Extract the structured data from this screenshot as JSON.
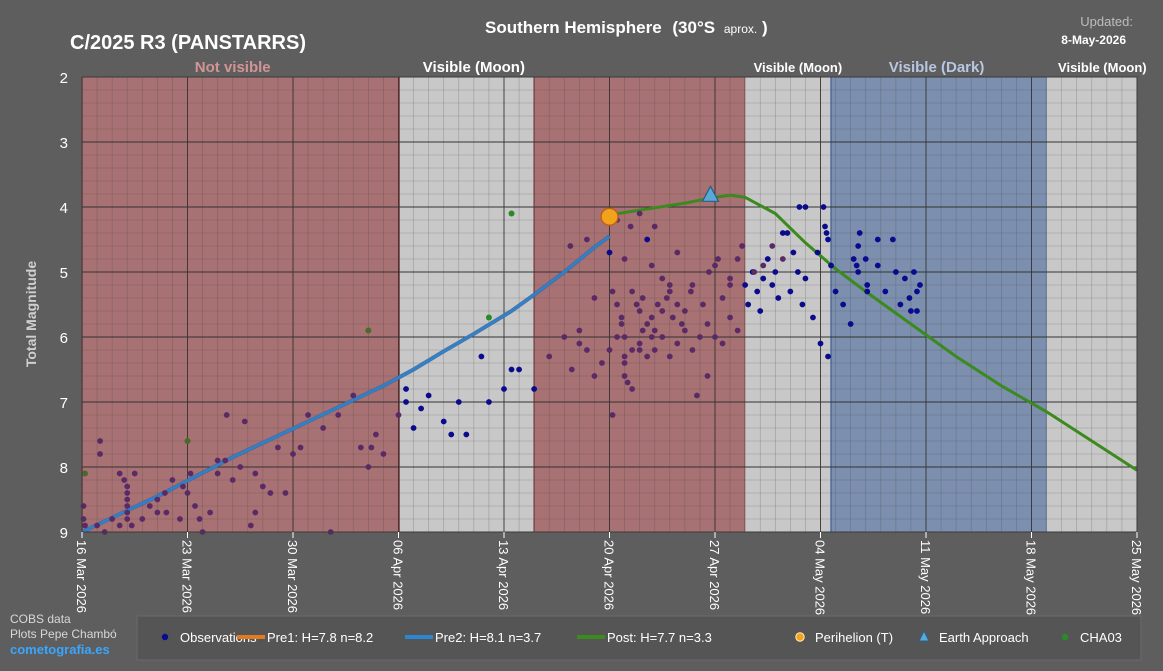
{
  "header": {
    "object_title": "C/2025 R3 (PANSTARRS)",
    "region_title": "Southern Hemisphere",
    "latitude": "(30°S",
    "approx": "aprox.",
    "latitude_close": ")",
    "updated_label": "Updated:",
    "updated_date": "8-May-2026"
  },
  "credits": {
    "line1": "COBS data",
    "line2": "Plots Pepe Chambó",
    "site": "cometografia.es"
  },
  "colors": {
    "not_visible": "#a87173",
    "visible_moon": "#c8c8c8",
    "visible_dark": "#7c8fae",
    "observations": "#0a0a8c",
    "pre1": "#e07b1f",
    "pre2": "#2a86d0",
    "post": "#3a8a1e",
    "cha03": "#2a8a2a"
  },
  "chart_data": {
    "type": "scatter",
    "title": "Southern Hemisphere (30°S aprox.)",
    "ylabel": "Total Magnitude",
    "xlabel": "",
    "xlim": [
      "2026-03-16",
      "2026-05-25"
    ],
    "ylim": [
      9,
      2
    ],
    "y_inverted": true,
    "yticks": [
      2,
      3,
      4,
      5,
      6,
      7,
      8,
      9
    ],
    "xticks": [
      "2026-03-16",
      "2026-03-23",
      "2026-03-30",
      "2026-04-06",
      "2026-04-13",
      "2026-04-20",
      "2026-04-27",
      "2026-05-04",
      "2026-05-11",
      "2026-05-18",
      "2026-05-25"
    ],
    "xtick_labels": [
      "16 Mar 2026",
      "23 Mar 2026",
      "30 Mar 2026",
      "06 Apr 2026",
      "13 Apr 2026",
      "20 Apr 2026",
      "27 Apr 2026",
      "04 May 2026",
      "11 May 2026",
      "18 May 2026",
      "25 May 2026"
    ],
    "grid": true,
    "legend_position": "bottom",
    "visibility_bands": [
      {
        "label": "Not visible",
        "kind": "not_visible",
        "start": "2026-03-16",
        "end": "2026-04-06.1"
      },
      {
        "label": "Visible (Moon)",
        "kind": "visible_moon",
        "start": "2026-04-06.1",
        "end": "2026-04-15"
      },
      {
        "label": "",
        "kind": "not_visible",
        "start": "2026-04-15",
        "end": "2026-04-29"
      },
      {
        "label": "Visible (Moon)",
        "kind": "visible_moon",
        "start": "2026-04-29",
        "end": "2026-05-04.7"
      },
      {
        "label": "Visible (Dark)",
        "kind": "visible_dark",
        "start": "2026-05-04.7",
        "end": "2026-05-19"
      },
      {
        "label": "Visible (Moon)",
        "kind": "visible_moon",
        "start": "2026-05-19",
        "end": "2026-05-25"
      }
    ],
    "band_labels": [
      {
        "text": "Not visible",
        "x": "2026-03-26",
        "kind": "not_visible"
      },
      {
        "text": "Visible (Moon)",
        "x": "2026-04-11",
        "kind": "visible_moon"
      },
      {
        "text": "Visible (Moon)",
        "x": "2026-05-02.5",
        "kind": "visible_moon"
      },
      {
        "text": "Visible (Dark)",
        "x": "2026-05-11.7",
        "kind": "visible_dark"
      },
      {
        "text": "Visible (Moon)",
        "x": "2026-05-22.7",
        "kind": "visible_moon"
      }
    ],
    "series": [
      {
        "name": "Pre2: H=8.1 n=3.7",
        "type": "line",
        "color_key": "pre2",
        "x": [
          0.0,
          5.0,
          10.0,
          15.0,
          20.0,
          22.0,
          24.0,
          26.0,
          28.5,
          30.0,
          32.0,
          34.0,
          35.0
        ],
        "y": [
          9.0,
          8.45,
          7.85,
          7.3,
          6.75,
          6.5,
          6.22,
          5.95,
          5.6,
          5.35,
          5.0,
          4.62,
          4.45
        ],
        "x_units": "days since 2026-03-16"
      },
      {
        "name": "Post: H=7.7 n=3.3",
        "type": "line",
        "color_key": "post",
        "x": [
          34.8,
          37.0,
          40.0,
          42.0,
          43.0,
          44.0,
          46.0,
          48.0,
          50.0,
          52.0,
          55.0,
          58.0,
          61.0,
          64.0,
          67.0,
          70.0
        ],
        "y": [
          4.13,
          4.05,
          3.94,
          3.85,
          3.82,
          3.85,
          4.1,
          4.55,
          4.95,
          5.3,
          5.8,
          6.3,
          6.75,
          7.15,
          7.6,
          8.05
        ],
        "x_units": "days since 2026-03-16"
      }
    ],
    "observations": {
      "name": "Observations",
      "points": [
        [
          0.1,
          8.6
        ],
        [
          0.1,
          8.8
        ],
        [
          0.2,
          8.9
        ],
        [
          1.0,
          8.9
        ],
        [
          1.2,
          7.6
        ],
        [
          1.2,
          7.8
        ],
        [
          1.5,
          9.0
        ],
        [
          2.0,
          8.8
        ],
        [
          2.5,
          8.9
        ],
        [
          2.5,
          8.1
        ],
        [
          2.8,
          8.2
        ],
        [
          3.0,
          8.3
        ],
        [
          3.0,
          8.4
        ],
        [
          3.0,
          8.5
        ],
        [
          3.0,
          8.6
        ],
        [
          3.0,
          8.7
        ],
        [
          3.0,
          8.8
        ],
        [
          3.3,
          8.9
        ],
        [
          3.5,
          8.1
        ],
        [
          4.0,
          8.8
        ],
        [
          4.5,
          8.6
        ],
        [
          5.0,
          8.5
        ],
        [
          5.0,
          8.7
        ],
        [
          5.5,
          8.4
        ],
        [
          5.6,
          8.7
        ],
        [
          6.0,
          8.2
        ],
        [
          6.5,
          8.8
        ],
        [
          6.7,
          8.3
        ],
        [
          7.0,
          8.4
        ],
        [
          7.2,
          8.1
        ],
        [
          7.5,
          8.6
        ],
        [
          7.8,
          8.8
        ],
        [
          8.0,
          9.0
        ],
        [
          8.5,
          8.7
        ],
        [
          9.0,
          8.1
        ],
        [
          9.0,
          7.9
        ],
        [
          9.5,
          7.9
        ],
        [
          9.6,
          7.2
        ],
        [
          10.0,
          8.2
        ],
        [
          10.5,
          8.0
        ],
        [
          10.8,
          7.3
        ],
        [
          11.2,
          8.9
        ],
        [
          11.5,
          8.7
        ],
        [
          11.5,
          8.1
        ],
        [
          12.0,
          8.3
        ],
        [
          12.5,
          8.4
        ],
        [
          13.0,
          7.7
        ],
        [
          13.5,
          8.4
        ],
        [
          14.0,
          7.8
        ],
        [
          14.5,
          7.7
        ],
        [
          15.0,
          7.2
        ],
        [
          16.0,
          7.4
        ],
        [
          16.5,
          9.0
        ],
        [
          17.0,
          7.2
        ],
        [
          18.0,
          6.9
        ],
        [
          18.5,
          7.7
        ],
        [
          19.0,
          8.0
        ],
        [
          19.2,
          7.7
        ],
        [
          19.5,
          7.5
        ],
        [
          20.0,
          7.8
        ],
        [
          21.0,
          7.2
        ],
        [
          21.5,
          7.0
        ],
        [
          21.5,
          6.8
        ],
        [
          22.0,
          7.4
        ],
        [
          22.5,
          7.1
        ],
        [
          23.0,
          6.9
        ],
        [
          24.0,
          7.3
        ],
        [
          24.5,
          7.5
        ],
        [
          25.0,
          7.0
        ],
        [
          25.5,
          7.5
        ],
        [
          26.5,
          6.3
        ],
        [
          27.0,
          7.0
        ],
        [
          28.0,
          6.8
        ],
        [
          28.5,
          6.5
        ],
        [
          29.0,
          6.5
        ],
        [
          30.0,
          6.8
        ],
        [
          31.0,
          6.3
        ],
        [
          32.0,
          6.0
        ],
        [
          32.5,
          6.5
        ],
        [
          33.0,
          5.9
        ],
        [
          33.0,
          6.1
        ],
        [
          33.5,
          6.2
        ],
        [
          34.0,
          6.6
        ],
        [
          34.5,
          6.4
        ],
        [
          35.0,
          6.2
        ],
        [
          35.5,
          6.0
        ],
        [
          36.0,
          6.0
        ],
        [
          36.0,
          6.3
        ],
        [
          36.5,
          6.2
        ],
        [
          37.0,
          6.2
        ],
        [
          35.2,
          5.3
        ],
        [
          35.5,
          5.5
        ],
        [
          35.8,
          5.7
        ],
        [
          35.8,
          5.8
        ],
        [
          36.5,
          5.3
        ],
        [
          36.8,
          5.5
        ],
        [
          37.0,
          5.6
        ],
        [
          37.2,
          5.4
        ],
        [
          37.5,
          5.8
        ],
        [
          37.8,
          5.7
        ],
        [
          38.0,
          5.9
        ],
        [
          38.2,
          5.5
        ],
        [
          38.5,
          5.6
        ],
        [
          38.8,
          5.4
        ],
        [
          39.0,
          5.3
        ],
        [
          39.2,
          5.7
        ],
        [
          39.5,
          5.5
        ],
        [
          39.8,
          5.8
        ],
        [
          40.0,
          5.6
        ],
        [
          40.5,
          5.2
        ],
        [
          36.0,
          6.4
        ],
        [
          36.0,
          6.6
        ],
        [
          36.2,
          6.7
        ],
        [
          36.5,
          6.8
        ],
        [
          37.0,
          6.1
        ],
        [
          37.2,
          5.9
        ],
        [
          37.5,
          6.3
        ],
        [
          37.8,
          6.0
        ],
        [
          38.0,
          6.2
        ],
        [
          38.5,
          6.0
        ],
        [
          39.0,
          6.3
        ],
        [
          39.5,
          6.1
        ],
        [
          40.0,
          5.9
        ],
        [
          40.5,
          6.2
        ],
        [
          41.0,
          6.0
        ],
        [
          41.5,
          5.8
        ],
        [
          42.0,
          6.0
        ],
        [
          42.5,
          6.1
        ],
        [
          43.0,
          5.7
        ],
        [
          43.5,
          5.9
        ],
        [
          40.8,
          6.9
        ],
        [
          41.5,
          6.6
        ],
        [
          42.0,
          4.9
        ],
        [
          42.5,
          5.4
        ],
        [
          43.0,
          5.1
        ],
        [
          43.5,
          4.8
        ],
        [
          44.0,
          5.2
        ],
        [
          44.2,
          5.5
        ],
        [
          44.5,
          5.0
        ],
        [
          44.8,
          5.3
        ],
        [
          45.0,
          5.6
        ],
        [
          45.2,
          5.1
        ],
        [
          45.5,
          4.8
        ],
        [
          45.8,
          5.2
        ],
        [
          46.0,
          5.0
        ],
        [
          46.2,
          5.4
        ],
        [
          46.5,
          4.4
        ],
        [
          46.8,
          4.4
        ],
        [
          47.0,
          5.3
        ],
        [
          47.2,
          4.7
        ],
        [
          47.5,
          5.0
        ],
        [
          47.8,
          5.5
        ],
        [
          48.0,
          5.1
        ],
        [
          48.5,
          5.7
        ],
        [
          49.0,
          6.1
        ],
        [
          49.5,
          6.3
        ],
        [
          50.0,
          5.3
        ],
        [
          50.5,
          5.5
        ],
        [
          51.0,
          5.8
        ],
        [
          51.5,
          5.0
        ]
      ]
    },
    "cha03": {
      "name": "CHA03",
      "points": [
        [
          0.2,
          8.1
        ],
        [
          7.0,
          7.6
        ],
        [
          19.0,
          5.9
        ],
        [
          27.0,
          5.7
        ],
        [
          28.5,
          4.1
        ]
      ],
      "x_units": "days since 2026-03-16"
    },
    "perihelion": {
      "name": "Perihelion (T)",
      "x": "2026-04-20",
      "y": 4.15
    },
    "earth_approach": {
      "name": "Earth Approach",
      "x": "2026-04-26.7",
      "y": 3.82
    },
    "legend": [
      {
        "label": "Observations",
        "kind": "observations"
      },
      {
        "label": "Pre1: H=7.8 n=8.2",
        "kind": "pre1"
      },
      {
        "label": "Pre2: H=8.1 n=3.7",
        "kind": "pre2"
      },
      {
        "label": "Post: H=7.7 n=3.3",
        "kind": "post"
      },
      {
        "label": "Perihelion (T)",
        "kind": "perihelion"
      },
      {
        "label": "Earth Approach",
        "kind": "earth_approach"
      },
      {
        "label": "CHA03",
        "kind": "cha03"
      }
    ]
  }
}
